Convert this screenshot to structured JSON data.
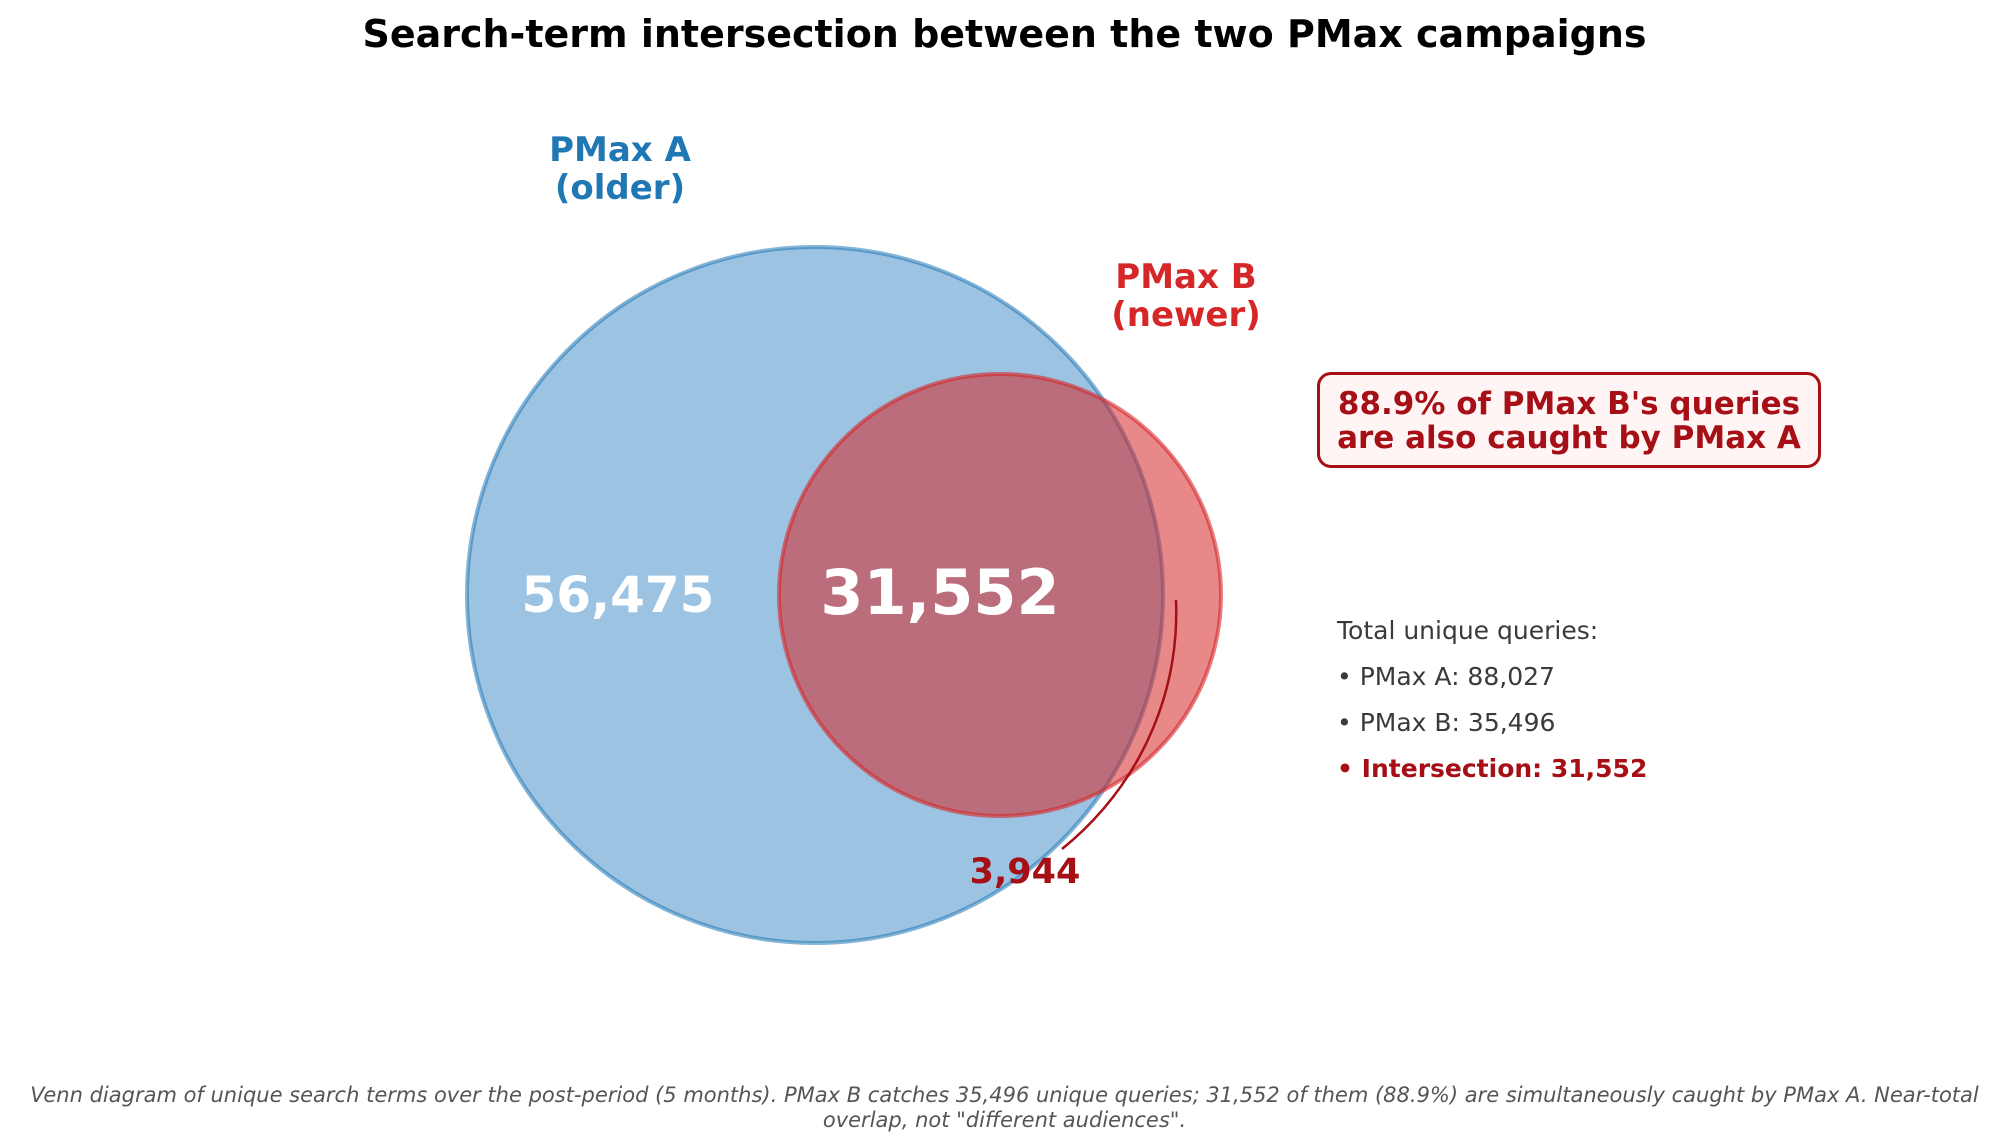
{
  "title": "Search-term intersection between the two PMax campaigns",
  "set_a": {
    "label_line1": "PMax A",
    "label_line2": "(older)",
    "only_count": "56,475",
    "color": "#1f77b4"
  },
  "set_b": {
    "label_line1": "PMax B",
    "label_line2": "(newer)",
    "only_count": "3,944",
    "color": "#d62728"
  },
  "intersection": {
    "count": "31,552"
  },
  "callout": {
    "line1": "88.9% of PMax B's queries",
    "line2": "are also caught by PMax A",
    "color": "#a50f15"
  },
  "totals": {
    "heading": "Total unique queries:",
    "pmax_a": "• PMax A: 88,027",
    "pmax_b": "• PMax B: 35,496",
    "intersection": "• Intersection: 31,552"
  },
  "caption": {
    "line1": "Venn diagram of unique search terms over the post-period (5 months). PMax B catches 35,496 unique queries; 31,552 of them (88.9%) are simultaneously caught by PMax A. Near-total",
    "line2": "overlap, not \"different audiences\"."
  }
}
